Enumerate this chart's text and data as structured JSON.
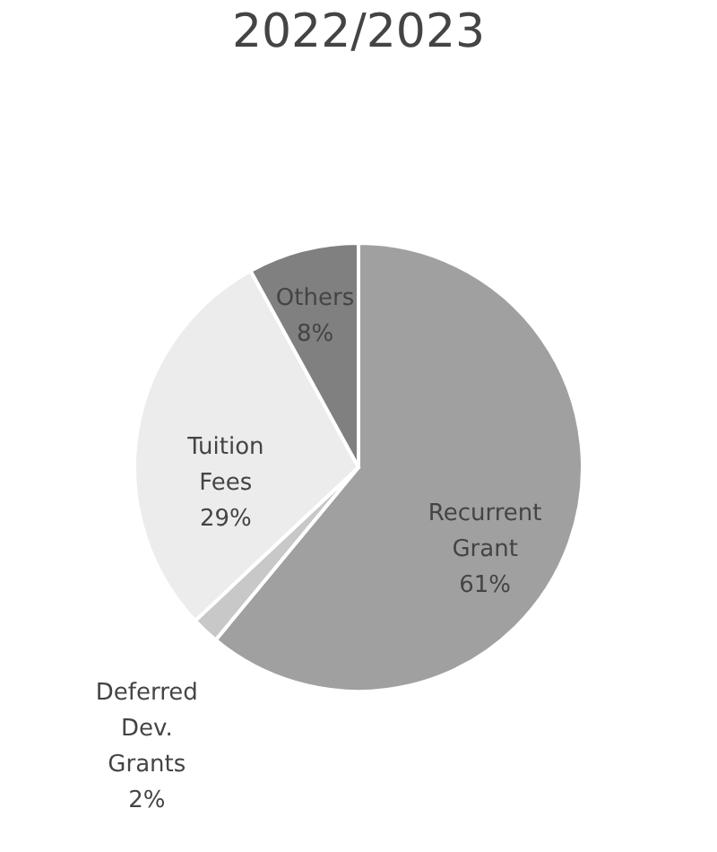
{
  "chart_data": {
    "type": "pie",
    "title": "2022/2023",
    "categories": [
      "Recurrent Grant",
      "Deferred Dev. Grants",
      "Tuition Fees",
      "Others"
    ],
    "values": [
      61,
      2,
      29,
      8
    ],
    "value_labels": [
      "61%",
      "2%",
      "29%",
      "8%"
    ],
    "colors": [
      "#a0a0a0",
      "#c8c8c8",
      "#ececec",
      "#808080"
    ],
    "legend": false
  }
}
